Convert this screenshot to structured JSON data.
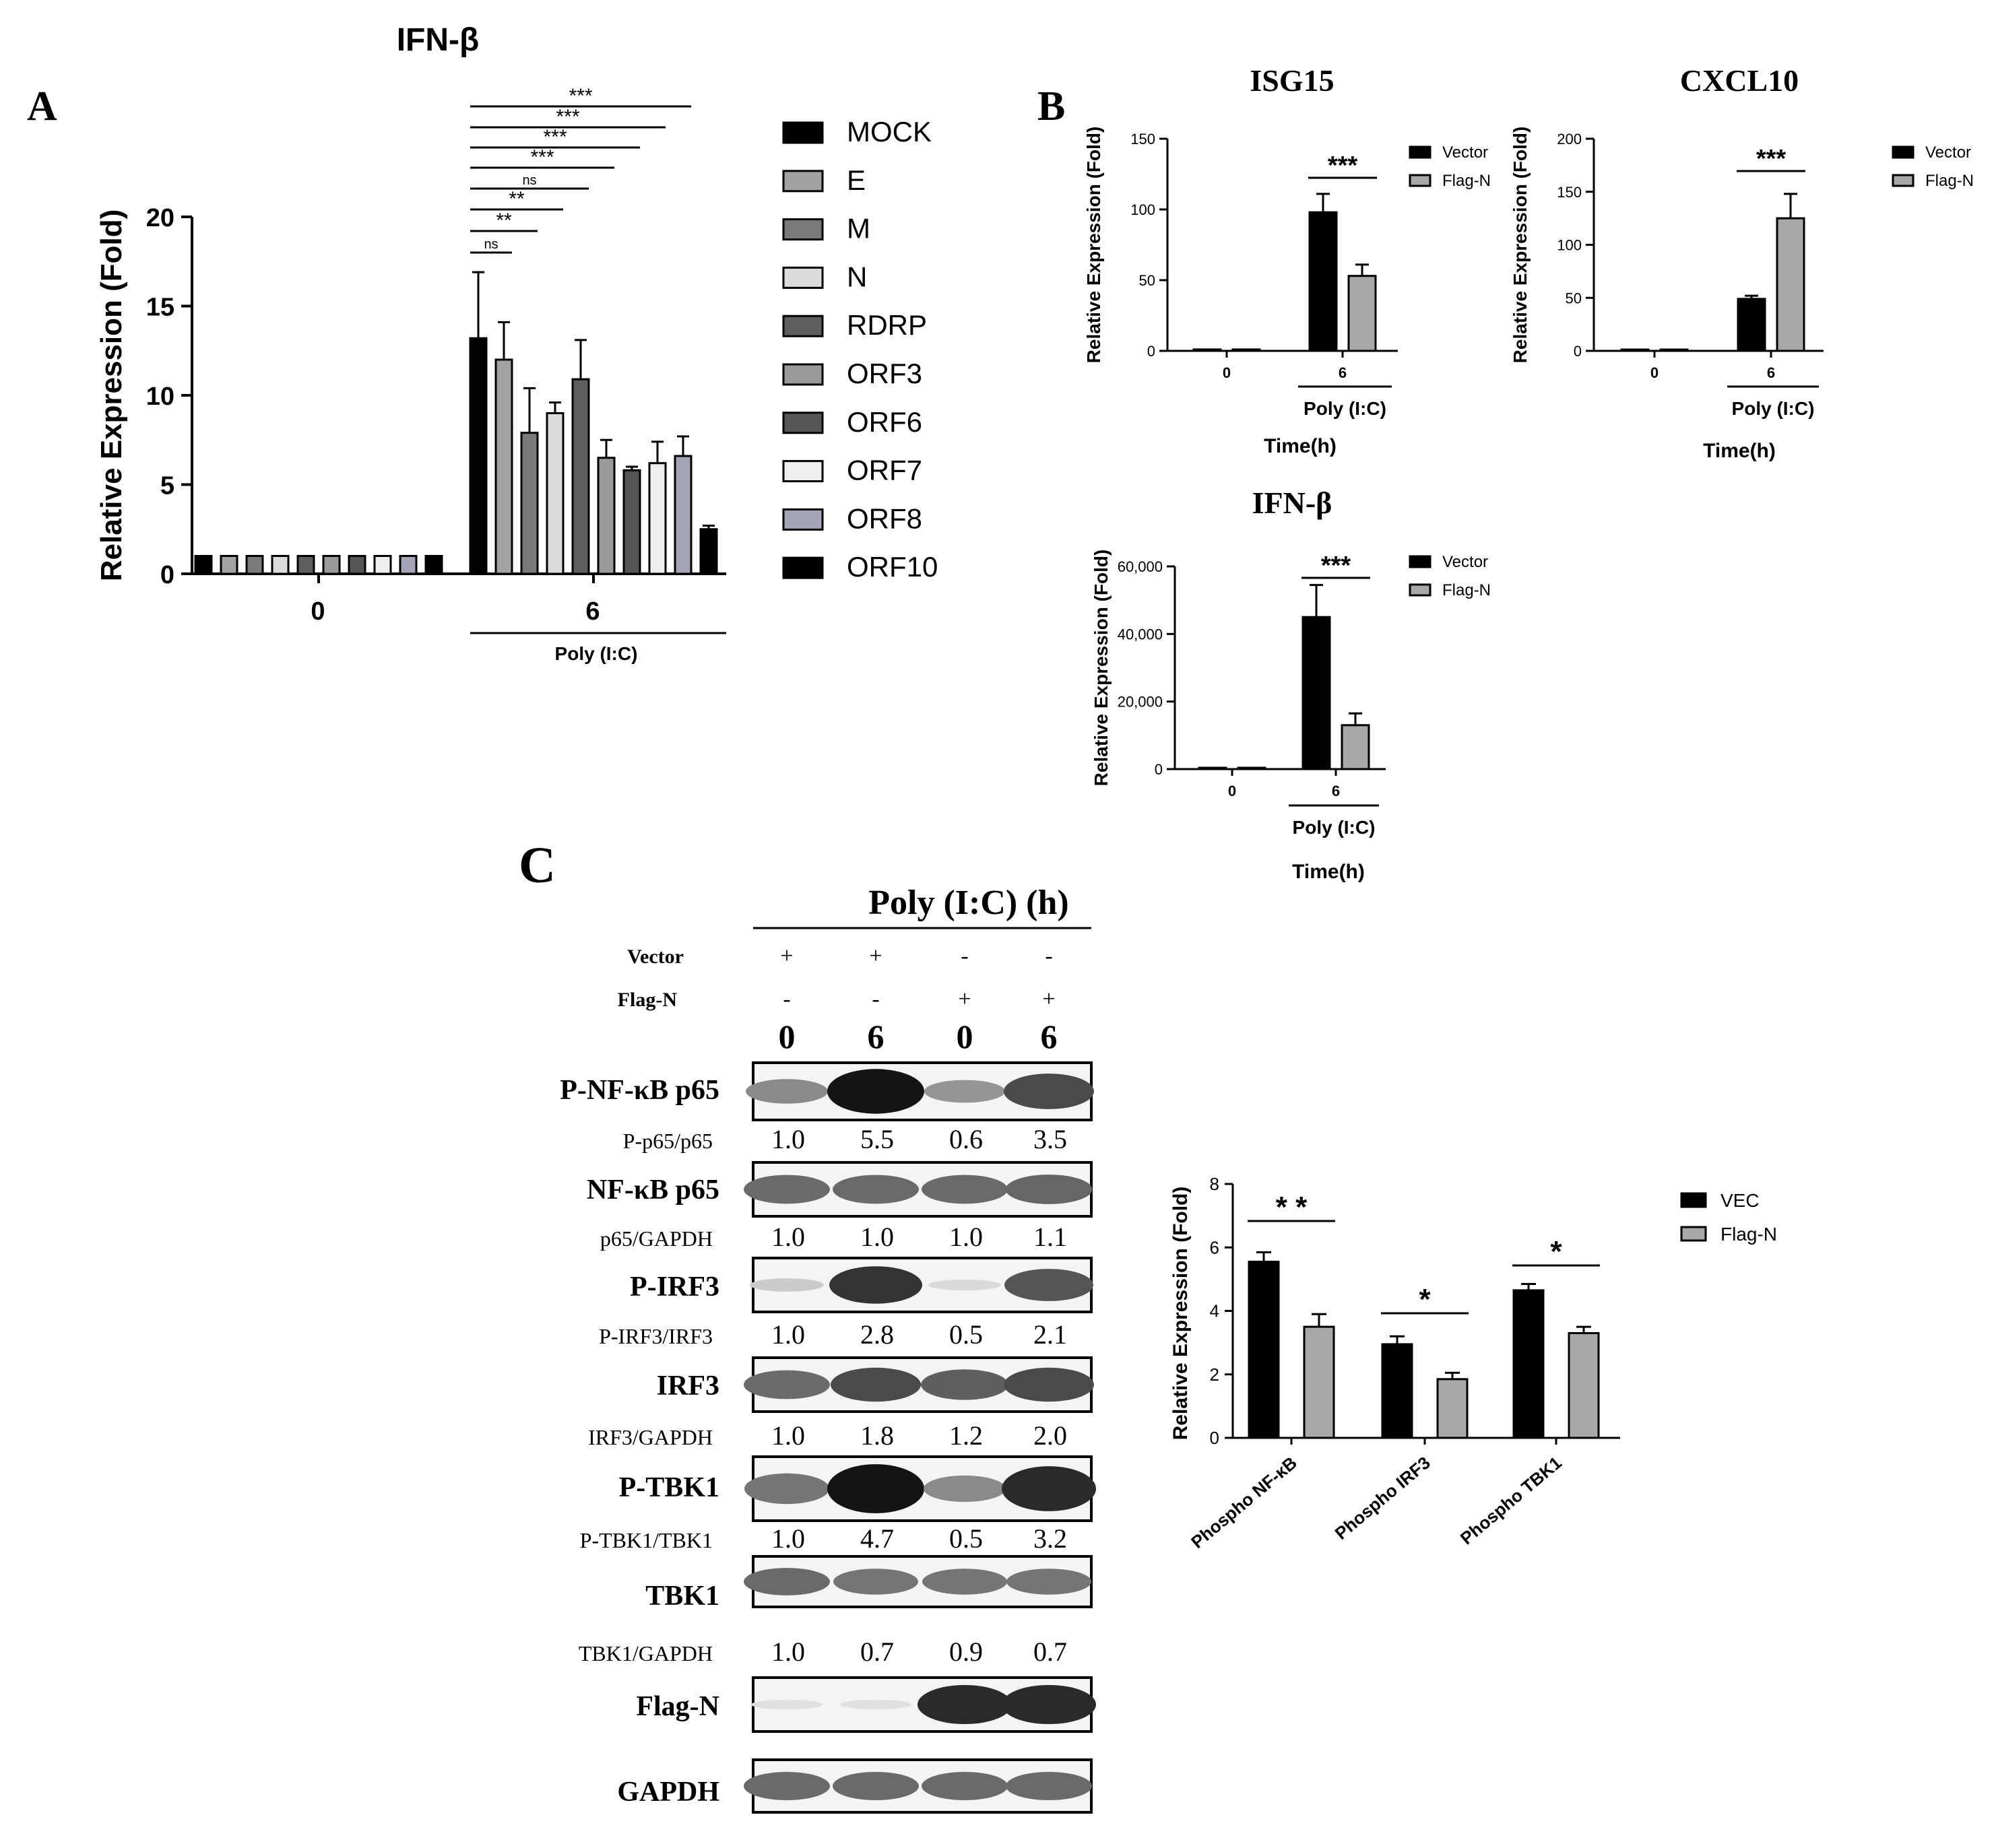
{
  "panel_labels": {
    "A": "A",
    "B": "B",
    "C": "C"
  },
  "colors": {
    "MOCK": "#000000",
    "E": "#a3a3a3",
    "M": "#7a7a7a",
    "N": "#dcdcdc",
    "RDRP": "#5e5e5e",
    "ORF3": "#9a9a9a",
    "ORF6": "#555555",
    "ORF7": "#eeeeee",
    "ORF8": "#a5a5b8",
    "ORF10": "#000000",
    "vector": "#000000",
    "flag": "#a8a8a8"
  },
  "chart_data": [
    {
      "id": "A",
      "type": "bar",
      "title": "IFN-β",
      "ylabel": "Relative Expression (Fold)",
      "ylim": [
        0,
        20
      ],
      "yticks": [
        "0",
        "5",
        "10",
        "15",
        "20"
      ],
      "categories": [
        "0",
        "6"
      ],
      "group_label": "Poly (I:C)",
      "legend_position": "right",
      "series": [
        {
          "name": "MOCK",
          "values": [
            1.0,
            13.2
          ],
          "err": [
            0,
            3.7
          ]
        },
        {
          "name": "E",
          "values": [
            1.0,
            12.0
          ],
          "err": [
            0,
            2.1
          ]
        },
        {
          "name": "M",
          "values": [
            1.0,
            7.9
          ],
          "err": [
            0,
            2.5
          ]
        },
        {
          "name": "N",
          "values": [
            1.0,
            9.0
          ],
          "err": [
            0,
            0.6
          ]
        },
        {
          "name": "RDRP",
          "values": [
            1.0,
            10.9
          ],
          "err": [
            0,
            2.2
          ]
        },
        {
          "name": "ORF3",
          "values": [
            1.0,
            6.5
          ],
          "err": [
            0,
            1.0
          ]
        },
        {
          "name": "ORF6",
          "values": [
            1.0,
            5.8
          ],
          "err": [
            0,
            0.2
          ]
        },
        {
          "name": "ORF7",
          "values": [
            1.0,
            6.2
          ],
          "err": [
            0,
            1.2
          ]
        },
        {
          "name": "ORF8",
          "values": [
            1.0,
            6.6
          ],
          "err": [
            0,
            1.1
          ]
        },
        {
          "name": "ORF10",
          "values": [
            1.0,
            2.5
          ],
          "err": [
            0,
            0.2
          ]
        }
      ],
      "significance": [
        "ns",
        "**",
        "**",
        "ns",
        "***",
        "***",
        "***",
        "***"
      ]
    },
    {
      "id": "B1",
      "type": "bar",
      "title": "ISG15",
      "ylabel": "Relative Expression (Fold)",
      "xlabel": "Time(h)",
      "group_label": "Poly (I:C)",
      "ylim": [
        0,
        150
      ],
      "yticks": [
        "0",
        "50",
        "100",
        "150"
      ],
      "categories": [
        "0",
        "6"
      ],
      "series": [
        {
          "name": "Vector",
          "values": [
            1,
            98
          ],
          "err": [
            0,
            13
          ]
        },
        {
          "name": "Flag-N",
          "values": [
            1,
            53
          ],
          "err": [
            0,
            8
          ]
        }
      ],
      "significance": "***",
      "legend_position": "top-right"
    },
    {
      "id": "B2",
      "type": "bar",
      "title": "CXCL10",
      "ylabel": "Relative Expression (Fold)",
      "xlabel": "Time(h)",
      "group_label": "Poly (I:C)",
      "ylim": [
        0,
        200
      ],
      "yticks": [
        "0",
        "50",
        "100",
        "150",
        "200"
      ],
      "categories": [
        "0",
        "6"
      ],
      "series": [
        {
          "name": "Vector",
          "values": [
            1,
            49
          ],
          "err": [
            0,
            3
          ]
        },
        {
          "name": "Flag-N",
          "values": [
            1,
            125
          ],
          "err": [
            0,
            23
          ]
        }
      ],
      "significance": "***",
      "legend_position": "top-right"
    },
    {
      "id": "B3",
      "type": "bar",
      "title": "IFN-β",
      "ylabel": "Relative Expression (Fold)",
      "xlabel": "Time(h)",
      "group_label": "Poly (I:C)",
      "ylim": [
        0,
        60000
      ],
      "yticks": [
        "0",
        "20,000",
        "40,000",
        "60,000"
      ],
      "categories": [
        "0",
        "6"
      ],
      "series": [
        {
          "name": "Vector",
          "values": [
            1,
            45000
          ],
          "err": [
            0,
            9500
          ]
        },
        {
          "name": "Flag-N",
          "values": [
            1,
            13000
          ],
          "err": [
            0,
            3500
          ]
        }
      ],
      "significance": "***",
      "legend_position": "top-right"
    },
    {
      "id": "C2",
      "type": "bar",
      "ylabel": "Relative Expression (Fold)",
      "ylim": [
        0,
        8
      ],
      "yticks": [
        "0",
        "2",
        "4",
        "6",
        "8"
      ],
      "categories": [
        "Phospho NF-κB",
        "Phospho IRF3",
        "Phospho TBK1"
      ],
      "series": [
        {
          "name": "VEC",
          "values": [
            5.55,
            2.95,
            4.65
          ],
          "err": [
            0.3,
            0.25,
            0.2
          ]
        },
        {
          "name": "Flag-N",
          "values": [
            3.5,
            1.85,
            3.3
          ],
          "err": [
            0.4,
            0.2,
            0.2
          ]
        }
      ],
      "significance": [
        "* *",
        "*",
        "*"
      ],
      "legend_position": "top-right"
    }
  ],
  "blot": {
    "header": "Poly (I:C)    (h)",
    "row_labels": [
      "Vector",
      "Flag-N"
    ],
    "vector_signs": [
      "+",
      "+",
      "-",
      "-"
    ],
    "flag_signs": [
      "-",
      "-",
      "+",
      "+"
    ],
    "times": [
      "0",
      "6",
      "0",
      "6"
    ],
    "bands": [
      {
        "label": "P-NF-κB p65",
        "intensity": [
          0.45,
          1.0,
          0.4,
          0.75
        ]
      },
      {
        "label": "NF-κB p65",
        "intensity": [
          0.6,
          0.6,
          0.6,
          0.62
        ]
      },
      {
        "label": "P-IRF3",
        "intensity": [
          0.15,
          0.85,
          0.08,
          0.7
        ]
      },
      {
        "label": "IRF3",
        "intensity": [
          0.6,
          0.75,
          0.65,
          0.75
        ]
      },
      {
        "label": "P-TBK1",
        "intensity": [
          0.55,
          1.0,
          0.45,
          0.9
        ]
      },
      {
        "label": "TBK1",
        "intensity": [
          0.6,
          0.55,
          0.55,
          0.55
        ]
      },
      {
        "label": "Flag-N",
        "intensity": [
          0.05,
          0.05,
          0.9,
          0.9
        ]
      },
      {
        "label": "GAPDH",
        "intensity": [
          0.6,
          0.6,
          0.6,
          0.6
        ]
      }
    ],
    "ratios": [
      {
        "label": "P-p65/p65",
        "values": [
          "1.0",
          "5.5",
          "0.6",
          "3.5"
        ]
      },
      {
        "label": "p65/GAPDH",
        "values": [
          "1.0",
          "1.0",
          "1.0",
          "1.1"
        ]
      },
      {
        "label": "P-IRF3/IRF3",
        "values": [
          "1.0",
          "2.8",
          "0.5",
          "2.1"
        ]
      },
      {
        "label": "IRF3/GAPDH",
        "values": [
          "1.0",
          "1.8",
          "1.2",
          "2.0"
        ]
      },
      {
        "label": "P-TBK1/TBK1",
        "values": [
          "1.0",
          "4.7",
          "0.5",
          "3.2"
        ]
      },
      {
        "label": "TBK1/GAPDH",
        "values": [
          "1.0",
          "0.7",
          "0.9",
          "0.7"
        ]
      }
    ]
  }
}
